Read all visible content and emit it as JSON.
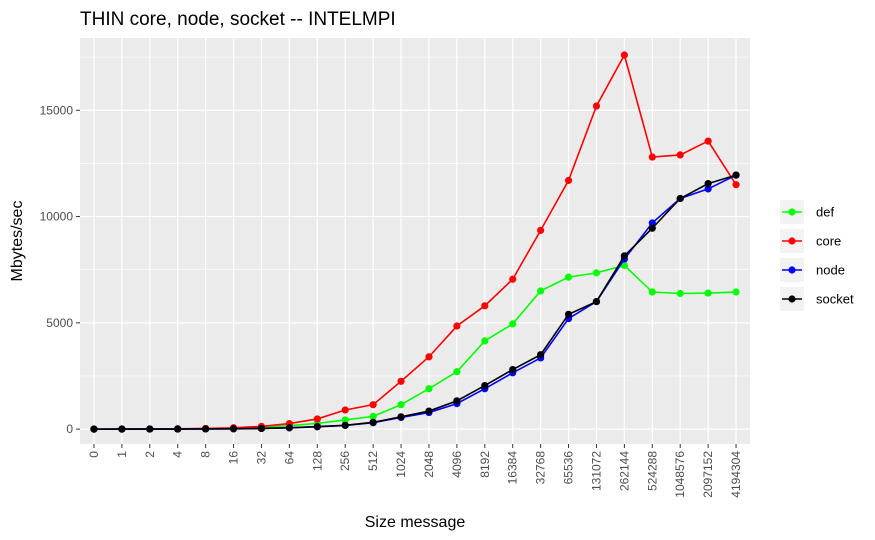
{
  "chart_data": {
    "type": "line",
    "title": "THIN core, node, socket -- INTELMPI",
    "xlabel": "Size message",
    "ylabel": "Mbytes/sec",
    "categories": [
      "0",
      "1",
      "2",
      "4",
      "8",
      "16",
      "32",
      "64",
      "128",
      "256",
      "512",
      "1024",
      "2048",
      "4096",
      "8192",
      "16384",
      "32768",
      "65536",
      "131072",
      "262144",
      "524288",
      "1048576",
      "2097152",
      "4194304"
    ],
    "ylim": [
      -700,
      18400
    ],
    "yticks": [
      0,
      5000,
      10000,
      15000
    ],
    "ytick_labels": [
      "0",
      "5000",
      "10000",
      "15000"
    ],
    "grid": true,
    "legend_position": "right",
    "series": [
      {
        "name": "def",
        "color": "#00ff00",
        "values": [
          0,
          2,
          4,
          9,
          18,
          36,
          80,
          160,
          270,
          430,
          600,
          1150,
          1900,
          2700,
          4150,
          4950,
          6500,
          7150,
          7350,
          7700,
          6450,
          6380,
          6400,
          6450
        ]
      },
      {
        "name": "core",
        "color": "#ff0000",
        "values": [
          0,
          4,
          8,
          16,
          32,
          64,
          128,
          260,
          480,
          900,
          1150,
          2250,
          3400,
          4850,
          5800,
          7050,
          9350,
          11700,
          15200,
          17600,
          12800,
          12900,
          13550,
          11500
        ]
      },
      {
        "name": "node",
        "color": "#0000ff",
        "values": [
          0,
          1,
          2,
          4,
          8,
          16,
          30,
          60,
          110,
          170,
          300,
          550,
          780,
          1200,
          1900,
          2650,
          3350,
          5200,
          6000,
          8000,
          9700,
          10850,
          11300,
          11950
        ]
      },
      {
        "name": "socket",
        "color": "#000000",
        "values": [
          0,
          1,
          2,
          4,
          8,
          16,
          32,
          65,
          120,
          180,
          320,
          580,
          850,
          1330,
          2050,
          2800,
          3500,
          5400,
          6000,
          8150,
          9450,
          10850,
          11550,
          11950
        ]
      }
    ]
  }
}
